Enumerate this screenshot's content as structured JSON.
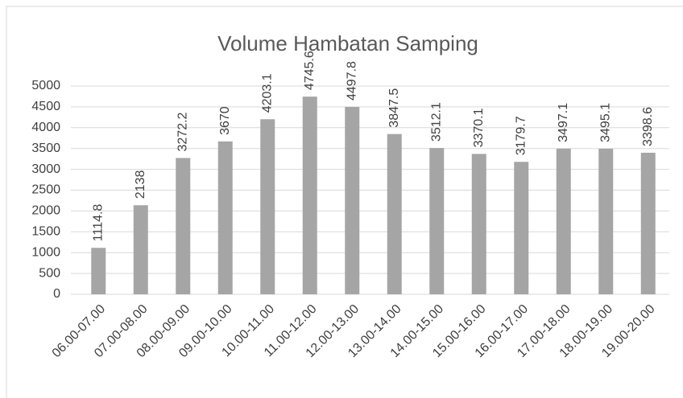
{
  "chart_data": {
    "type": "bar",
    "title": "Volume Hambatan Samping",
    "categories": [
      "06.00-07.00",
      "07.00-08.00",
      "08.00-09.00",
      "09.00-10.00",
      "10.00-11.00",
      "11.00-12.00",
      "12.00-13.00",
      "13.00-14.00",
      "14.00-15.00",
      "15.00-16.00",
      "16.00-17.00",
      "17.00-18.00",
      "18.00-19.00",
      "19.00-20.00"
    ],
    "values": [
      1114.8,
      2138,
      3272.2,
      3670,
      4203.1,
      4745.6,
      4497.8,
      3847.5,
      3512.1,
      3370.1,
      3179.7,
      3497.1,
      3495.1,
      3398.6
    ],
    "color": "#a5a5a5",
    "ylim": [
      0,
      5000
    ],
    "yticks": [
      0,
      500,
      1000,
      1500,
      2000,
      2500,
      3000,
      3500,
      4000,
      4500,
      5000
    ],
    "grid": true
  }
}
